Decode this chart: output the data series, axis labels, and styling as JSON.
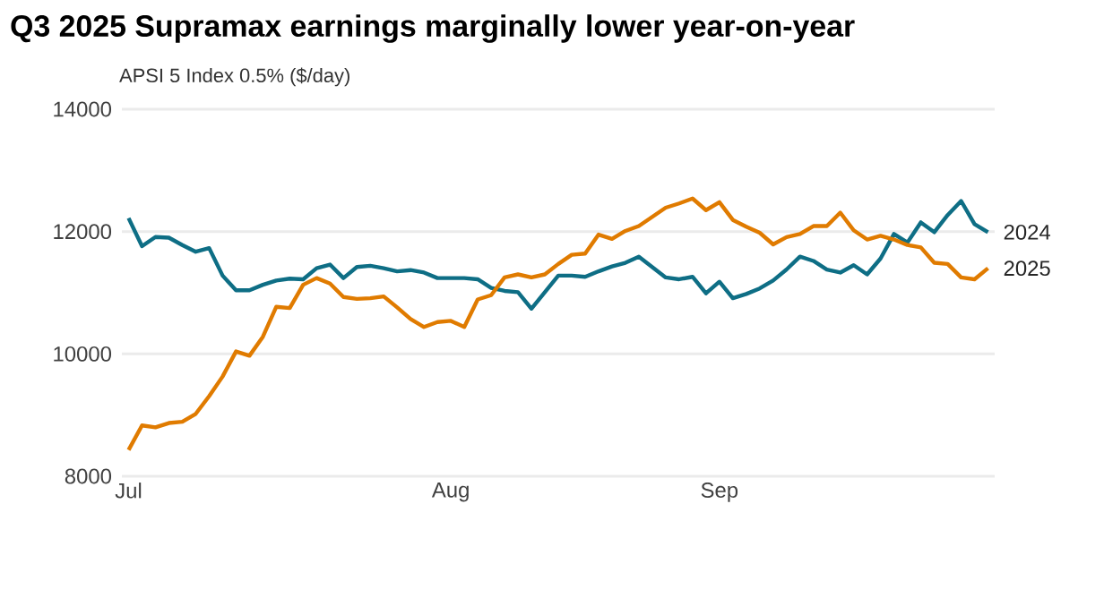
{
  "chart_data": {
    "type": "line",
    "title": "Q3 2025 Supramax earnings marginally lower year-on-year",
    "ylabel": "APSI 5 Index 0.5% ($/day)",
    "categories": [
      "Jul",
      null,
      null,
      null,
      null,
      null,
      null,
      null,
      null,
      null,
      null,
      null,
      null,
      null,
      null,
      null,
      null,
      null,
      null,
      null,
      null,
      null,
      null,
      null,
      "Aug",
      null,
      null,
      null,
      null,
      null,
      null,
      null,
      null,
      null,
      null,
      null,
      null,
      null,
      null,
      null,
      null,
      null,
      null,
      null,
      "Sep",
      null,
      null,
      null,
      null,
      null,
      null,
      null,
      null,
      null,
      null,
      null,
      null,
      null,
      null,
      null,
      null,
      null,
      null,
      null,
      null
    ],
    "series": [
      {
        "name": "2024",
        "color": "#0e6e85",
        "values": [
          12220,
          11760,
          11910,
          11900,
          11780,
          11670,
          11730,
          11280,
          11040,
          11040,
          11130,
          11200,
          11230,
          11220,
          11400,
          11460,
          11240,
          11420,
          11440,
          11400,
          11350,
          11370,
          11330,
          11240,
          11240,
          11240,
          11220,
          11080,
          11030,
          11010,
          10740,
          11010,
          11280,
          11280,
          11260,
          11350,
          11430,
          11490,
          11590,
          11420,
          11250,
          11220,
          11260,
          10990,
          11180,
          10910,
          10980,
          11070,
          11200,
          11380,
          11590,
          11520,
          11380,
          11330,
          11450,
          11300,
          11560,
          11960,
          11820,
          12150,
          11990,
          12270,
          12500,
          12120,
          11990
        ]
      },
      {
        "name": "2025",
        "color": "#e07b00",
        "values": [
          8430,
          8830,
          8800,
          8870,
          8890,
          9020,
          9310,
          9630,
          10040,
          9970,
          10280,
          10770,
          10750,
          11130,
          11240,
          11150,
          10930,
          10900,
          10910,
          10940,
          10760,
          10570,
          10440,
          10520,
          10540,
          10440,
          10890,
          10960,
          11250,
          11300,
          11250,
          11300,
          11470,
          11620,
          11640,
          11950,
          11880,
          12010,
          12090,
          12240,
          12390,
          12460,
          12540,
          12350,
          12480,
          12190,
          12080,
          11980,
          11790,
          11910,
          11960,
          12090,
          12090,
          12310,
          12020,
          11870,
          11930,
          11870,
          11780,
          11740,
          11490,
          11470,
          11250,
          11220,
          11400
        ]
      }
    ],
    "ylim": [
      8000,
      14000
    ],
    "yticks": [
      8000,
      10000,
      12000,
      14000
    ],
    "grid": "y",
    "legend": false,
    "marker": "none",
    "line_style": "solid"
  }
}
